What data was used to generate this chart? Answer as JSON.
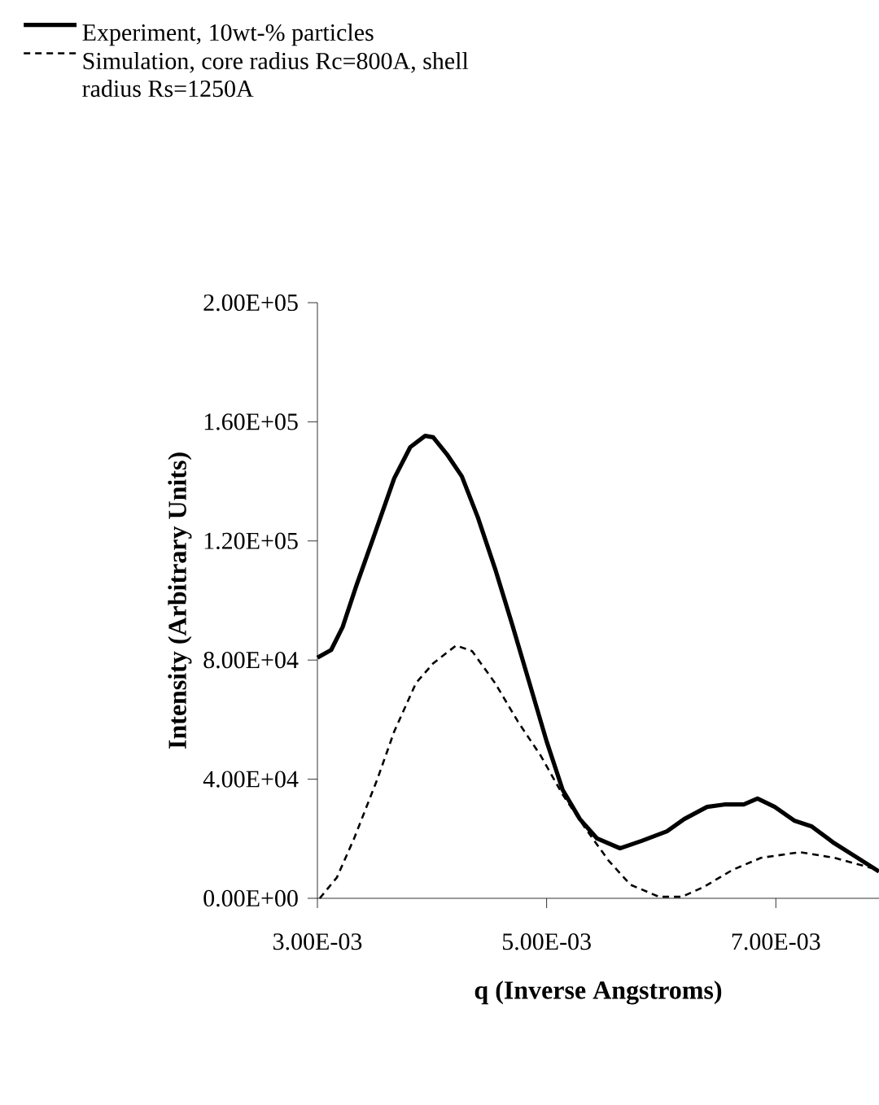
{
  "chart_data": {
    "type": "line",
    "xlabel": "q (Inverse Angstroms)",
    "ylabel": "Intensity (Arbitrary Units)",
    "xlim": [
      0.003,
      0.0079
    ],
    "ylim": [
      0,
      200000
    ],
    "xticks": [
      {
        "value": 0.003,
        "label": "3.00E-03"
      },
      {
        "value": 0.005,
        "label": "5.00E-03"
      },
      {
        "value": 0.007,
        "label": "7.00E-03"
      }
    ],
    "yticks": [
      {
        "value": 0,
        "label": "0.00E+00"
      },
      {
        "value": 40000,
        "label": "4.00E+04"
      },
      {
        "value": 80000,
        "label": "8.00E+04"
      },
      {
        "value": 120000,
        "label": "1.20E+05"
      },
      {
        "value": 160000,
        "label": "1.60E+05"
      },
      {
        "value": 200000,
        "label": "2.00E+05"
      }
    ],
    "grid": false,
    "legend": "top left",
    "marker": "none",
    "series": [
      {
        "name": "Experiment, 10wt-% particles",
        "color": "#000000",
        "line_style": "solid",
        "x": [
          0.003,
          0.00312,
          0.00322,
          0.00334,
          0.00349,
          0.00367,
          0.00381,
          0.00394,
          0.00401,
          0.00413,
          0.00426,
          0.0044,
          0.00455,
          0.0047,
          0.00485,
          0.005,
          0.00514,
          0.00529,
          0.00544,
          0.00564,
          0.00583,
          0.00605,
          0.0062,
          0.0064,
          0.00655,
          0.00672,
          0.00684,
          0.00699,
          0.00716,
          0.00731,
          0.00751,
          0.0077,
          0.0079
        ],
        "values": [
          80800,
          83400,
          91100,
          105000,
          121300,
          141000,
          151500,
          155300,
          154800,
          149100,
          141700,
          127900,
          110700,
          91900,
          72300,
          52700,
          36400,
          26600,
          20100,
          16800,
          19300,
          22500,
          26600,
          30700,
          31500,
          31500,
          33500,
          30700,
          26100,
          24200,
          18500,
          13900,
          9000
        ]
      },
      {
        "name": "Simulation, core radius Rc=800A, shell radius Rs=1250A",
        "color": "#000000",
        "line_style": "dashed",
        "x": [
          0.00302,
          0.00317,
          0.00332,
          0.00352,
          0.00367,
          0.00386,
          0.00401,
          0.00421,
          0.00435,
          0.00455,
          0.00475,
          0.00495,
          0.00514,
          0.00534,
          0.00554,
          0.00573,
          0.00598,
          0.00618,
          0.00637,
          0.00662,
          0.00687,
          0.00721,
          0.00751,
          0.0079
        ],
        "values": [
          0,
          7000,
          20100,
          39700,
          56000,
          72300,
          78900,
          84900,
          83000,
          72300,
          59300,
          47800,
          34800,
          23400,
          12700,
          4600,
          500,
          500,
          3800,
          9500,
          13600,
          15500,
          13600,
          9500
        ]
      }
    ]
  }
}
